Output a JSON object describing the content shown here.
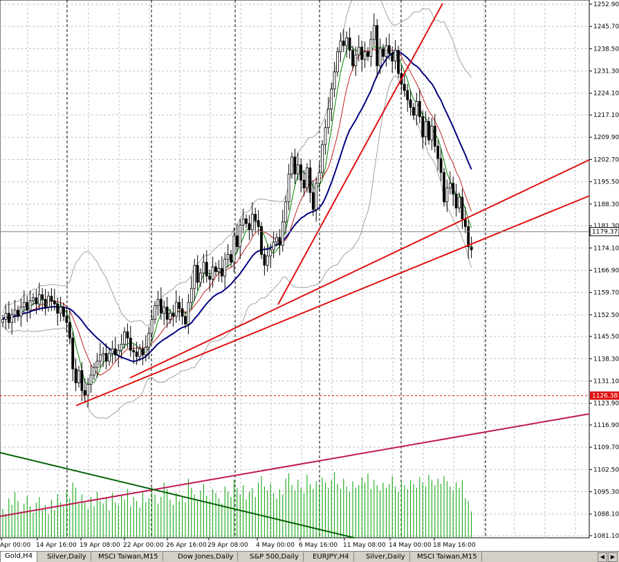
{
  "chart_data": {
    "type": "candlestick",
    "symbol": "Gold,H4",
    "y_ticks": [
      "1252.90",
      "1245.70",
      "1238.50",
      "1231.30",
      "1224.10",
      "1217.10",
      "1209.90",
      "1202.70",
      "1195.50",
      "1188.30",
      "1181.30",
      "1174.10",
      "1166.90",
      "1159.70",
      "1152.50",
      "1145.50",
      "1138.30",
      "1131.10",
      "1123.90",
      "1116.90",
      "1109.70",
      "1102.50",
      "1095.30",
      "1088.10",
      "1081.10"
    ],
    "ylim": [
      1081.1,
      1252.9
    ],
    "x_ticks": [
      "Apr 00:00",
      "14 Apr 16:00",
      "19 Apr 08:00",
      "22 Apr 00:00",
      "26 Apr 16:00",
      "29 Apr 08:00",
      "4 May 00:00",
      "6 May 16:00",
      "11 May 08:00",
      "14 May 00:00",
      "18 May 16:00"
    ],
    "current_price": "1179.37",
    "horizontal_level": "1126.38",
    "closes": [
      1151.0,
      1153.0,
      1150.0,
      1152.5,
      1154.0,
      1152.0,
      1155.0,
      1156.5,
      1154.0,
      1157.0,
      1158.0,
      1156.0,
      1159.0,
      1157.5,
      1155.0,
      1158.5,
      1157.0,
      1156.0,
      1153.0,
      1155.0,
      1152.0,
      1150.0,
      1145.0,
      1135.0,
      1130.5,
      1134.5,
      1128.0,
      1126.5,
      1130.0,
      1133.0,
      1135.5,
      1137.5,
      1139.5,
      1140.0,
      1137.5,
      1140.0,
      1141.5,
      1139.5,
      1141.0,
      1143.0,
      1147.0,
      1145.0,
      1141.0,
      1140.5,
      1139.0,
      1141.5,
      1139.5,
      1142.0,
      1146.5,
      1151.0,
      1155.5,
      1157.5,
      1153.0,
      1155.0,
      1151.0,
      1153.0,
      1152.0,
      1156.5,
      1154.5,
      1152.0,
      1149.5,
      1156.5,
      1161.0,
      1168.5,
      1163.0,
      1166.0,
      1169.5,
      1165.0,
      1164.0,
      1168.0,
      1166.5,
      1167.5,
      1165.0,
      1170.5,
      1172.0,
      1169.5,
      1178.0,
      1174.5,
      1181.5,
      1183.5,
      1182.0,
      1180.0,
      1185.0,
      1183.0,
      1181.0,
      1172.0,
      1168.5,
      1171.5,
      1173.5,
      1176.0,
      1177.5,
      1175.0,
      1182.5,
      1189.0,
      1198.0,
      1203.5,
      1198.0,
      1201.0,
      1196.0,
      1193.5,
      1200.0,
      1192.0,
      1186.5,
      1195.0,
      1198.5,
      1207.5,
      1213.0,
      1219.0,
      1225.5,
      1231.0,
      1237.5,
      1241.0,
      1239.5,
      1242.0,
      1238.0,
      1233.0,
      1236.5,
      1239.0,
      1235.0,
      1237.5,
      1236.0,
      1241.5,
      1246.0,
      1233.0,
      1238.5,
      1236.0,
      1239.5,
      1237.0,
      1234.5,
      1238.0,
      1230.5,
      1227.0,
      1225.0,
      1222.0,
      1219.5,
      1217.0,
      1221.5,
      1216.5,
      1210.0,
      1215.0,
      1209.0,
      1213.5,
      1207.0,
      1203.0,
      1198.5,
      1189.0,
      1193.5,
      1195.0,
      1191.5,
      1187.0,
      1190.5,
      1183.5,
      1181.0,
      1174.5,
      1173.5
    ],
    "volume": [
      22,
      18,
      30,
      25,
      35,
      28,
      20,
      26,
      32,
      24,
      19,
      27,
      31,
      22,
      25,
      18,
      29,
      21,
      33,
      27,
      24,
      36,
      30,
      42,
      38,
      26,
      33,
      28,
      22,
      31,
      24,
      35,
      28,
      26,
      30,
      21,
      34,
      27,
      25,
      32,
      29,
      37,
      24,
      31,
      28,
      23,
      35,
      27,
      30,
      39,
      33,
      26,
      31,
      42,
      37,
      29,
      25,
      34,
      28,
      31,
      27,
      45,
      38,
      33,
      29,
      36,
      41,
      32,
      28,
      37,
      34,
      30,
      26,
      39,
      35,
      31,
      44,
      38,
      33,
      40,
      29,
      35,
      38,
      31,
      42,
      47,
      39,
      36,
      41,
      34,
      30,
      37,
      33,
      45,
      49,
      40,
      36,
      44,
      38,
      34,
      48,
      41,
      37,
      43,
      39,
      46,
      42,
      38,
      44,
      50,
      41,
      37,
      45,
      39,
      35,
      43,
      38,
      40,
      46,
      42,
      49,
      37,
      44,
      40,
      36,
      42,
      38,
      41,
      47,
      39,
      35,
      43,
      40,
      37,
      44,
      41,
      38,
      46,
      42,
      39,
      48,
      44,
      40,
      45,
      41,
      47,
      43,
      39,
      36,
      42,
      38,
      44,
      30,
      28,
      20
    ],
    "series": []
  }
}
